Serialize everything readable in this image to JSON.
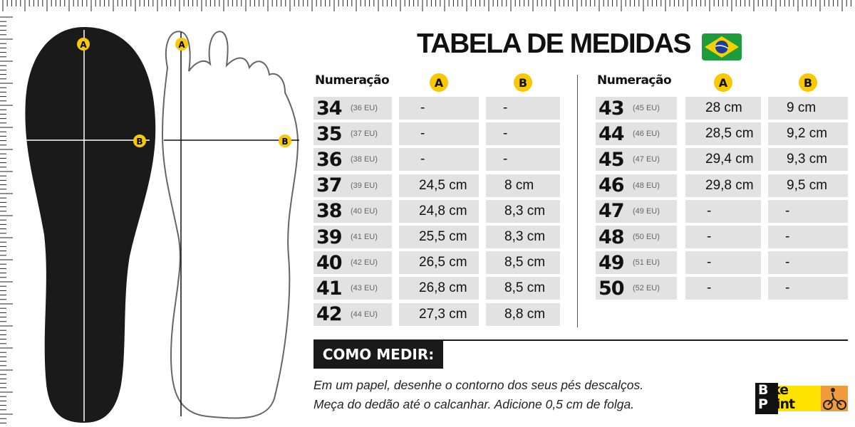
{
  "title": "TABELA DE MEDIDAS",
  "flag_icon": "brazil-flag-icon",
  "colors": {
    "badge": "#f8c800",
    "cell": "#e2e2e2",
    "insole": "#1a1a1a"
  },
  "headers": {
    "numeracao": "Numeração",
    "a": "A",
    "b": "B"
  },
  "diagram_labels": {
    "a": "A",
    "b": "B"
  },
  "left_table": [
    {
      "br": "34",
      "eu": "(36 EU)",
      "a": "-",
      "b": "-"
    },
    {
      "br": "35",
      "eu": "(37 EU)",
      "a": "-",
      "b": "-"
    },
    {
      "br": "36",
      "eu": "(38 EU)",
      "a": "-",
      "b": "-"
    },
    {
      "br": "37",
      "eu": "(39 EU)",
      "a": "24,5 cm",
      "b": "8 cm"
    },
    {
      "br": "38",
      "eu": "(40 EU)",
      "a": "24,8 cm",
      "b": "8,3 cm"
    },
    {
      "br": "39",
      "eu": "(41 EU)",
      "a": "25,5 cm",
      "b": "8,3 cm"
    },
    {
      "br": "40",
      "eu": "(42 EU)",
      "a": "26,5 cm",
      "b": "8,5 cm"
    },
    {
      "br": "41",
      "eu": "(43 EU)",
      "a": "26,8 cm",
      "b": "8,5 cm"
    },
    {
      "br": "42",
      "eu": "(44 EU)",
      "a": "27,3 cm",
      "b": "8,8 cm"
    }
  ],
  "right_table": [
    {
      "br": "43",
      "eu": "(45 EU)",
      "a": "28 cm",
      "b": "9 cm"
    },
    {
      "br": "44",
      "eu": "(46 EU)",
      "a": "28,5 cm",
      "b": "9,2 cm"
    },
    {
      "br": "45",
      "eu": "(47 EU)",
      "a": "29,4 cm",
      "b": "9,3 cm"
    },
    {
      "br": "46",
      "eu": "(48 EU)",
      "a": "29,8 cm",
      "b": "9,5 cm"
    },
    {
      "br": "47",
      "eu": "(49 EU)",
      "a": "-",
      "b": "-"
    },
    {
      "br": "48",
      "eu": "(50 EU)",
      "a": "-",
      "b": "-"
    },
    {
      "br": "49",
      "eu": "(51 EU)",
      "a": "-",
      "b": "-"
    },
    {
      "br": "50",
      "eu": "(52 EU)",
      "a": "-",
      "b": "-"
    }
  ],
  "como_medir": {
    "title": "COMO MEDIR:",
    "line1": "Em um papel,  desenhe o contorno dos seus pés descalços.",
    "line2": "Meça do dedão até o calcanhar. Adicione 0,5 cm de folga."
  },
  "logo": {
    "text": "Bike Point",
    "icon": "cyclist-icon"
  }
}
